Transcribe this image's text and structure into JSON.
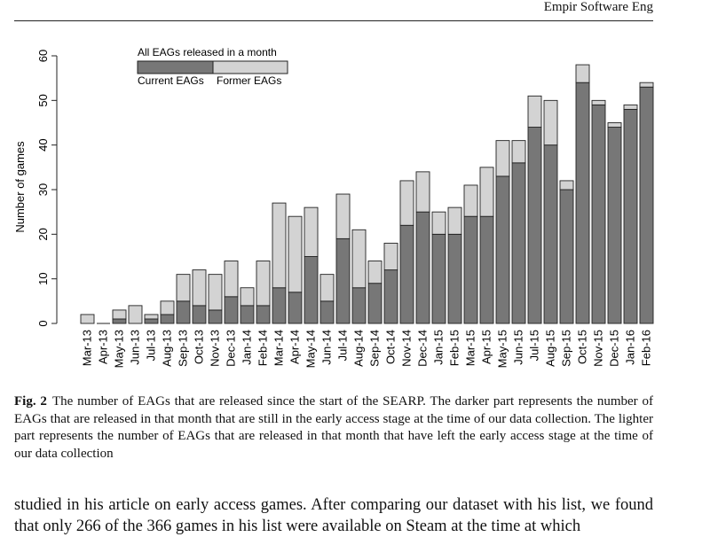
{
  "header": {
    "running_head": "Empir Software Eng"
  },
  "chart_data": {
    "type": "bar",
    "stacked": true,
    "ylabel": "Number of games",
    "xlabel": "",
    "ylim": [
      0,
      60
    ],
    "yticks": [
      0,
      10,
      20,
      30,
      40,
      50,
      60
    ],
    "legend": {
      "title": "All EAGs released in a month",
      "placement": "top-left"
    },
    "categories": [
      "Mar-13",
      "Apr-13",
      "May-13",
      "Jun-13",
      "Jul-13",
      "Aug-13",
      "Sep-13",
      "Oct-13",
      "Nov-13",
      "Dec-13",
      "Jan-14",
      "Feb-14",
      "Mar-14",
      "Apr-14",
      "May-14",
      "Jun-14",
      "Jul-14",
      "Aug-14",
      "Sep-14",
      "Oct-14",
      "Nov-14",
      "Dec-14",
      "Jan-15",
      "Feb-15",
      "Mar-15",
      "Apr-15",
      "May-15",
      "Jun-15",
      "Jul-15",
      "Aug-15",
      "Sep-15",
      "Oct-15",
      "Nov-15",
      "Dec-15",
      "Jan-16",
      "Feb-16"
    ],
    "series": [
      {
        "name": "Current EAGs",
        "color": "#777777",
        "values": [
          0,
          0,
          1,
          0,
          1,
          2,
          5,
          4,
          3,
          6,
          4,
          4,
          8,
          7,
          15,
          5,
          19,
          8,
          9,
          12,
          22,
          25,
          20,
          20,
          24,
          24,
          33,
          36,
          44,
          40,
          30,
          54,
          49,
          44,
          48,
          53
        ]
      },
      {
        "name": "Former EAGs",
        "color": "#d3d3d3",
        "values": [
          2,
          0,
          2,
          4,
          1,
          3,
          6,
          8,
          8,
          8,
          4,
          10,
          19,
          17,
          11,
          6,
          10,
          13,
          5,
          6,
          10,
          9,
          5,
          6,
          7,
          11,
          8,
          5,
          7,
          10,
          2,
          4,
          1,
          1,
          1,
          1
        ]
      }
    ]
  },
  "caption": {
    "label": "Fig. 2",
    "text": "The number of EAGs that are released since the start of the SEARP. The darker part represents the number of EAGs that are released in that month that are still in the early access stage at the time of our data collection. The lighter part represents the number of EAGs that are released in that month that have left the early access stage at the time of our data collection"
  },
  "body": {
    "paragraph": "studied in his article on early access games. After comparing our dataset with his list, we found that only 266 of the 366 games in his list were available on Steam at the time at which"
  }
}
